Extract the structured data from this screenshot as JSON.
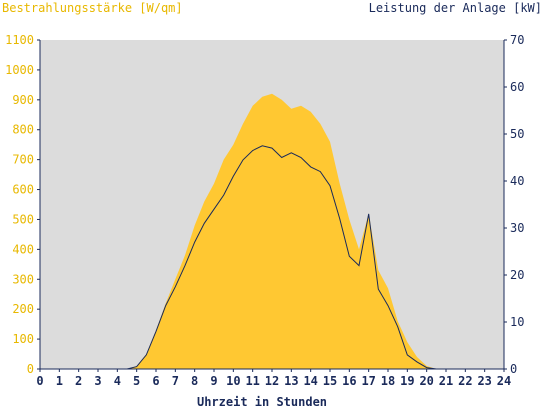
{
  "chart_data": {
    "type": "area",
    "left_title": "Bestrahlungsstärke [W/qm]",
    "right_title": "Leistung der Anlage [kW]",
    "xlabel": "Uhrzeit in Stunden",
    "x_range": [
      0,
      24
    ],
    "x_ticks": [
      "0",
      "1",
      "2",
      "3",
      "4",
      "5",
      "6",
      "7",
      "8",
      "9",
      "10",
      "11",
      "12",
      "13",
      "14",
      "15",
      "16",
      "17",
      "18",
      "19",
      "20",
      "21",
      "22",
      "23",
      "24"
    ],
    "y_left_range": [
      0,
      1100
    ],
    "y_left_ticks": [
      "0",
      "100",
      "200",
      "300",
      "400",
      "500",
      "600",
      "700",
      "800",
      "900",
      "1000",
      "1100"
    ],
    "y_right_range": [
      0,
      70
    ],
    "y_right_ticks": [
      "0",
      "10",
      "20",
      "30",
      "40",
      "50",
      "60",
      "70"
    ],
    "grid": false,
    "colors": {
      "plot_bg": "#dcdcdc",
      "irradiance_fill": "#ffc832",
      "power_line": "#1a2a5a",
      "left_axis_text": "#e8b800",
      "right_axis_text": "#1a2a5a",
      "axis_line": "#1a2a5a"
    },
    "series": [
      {
        "axis": "left",
        "style": "area",
        "x": [
          0,
          4.5,
          5.0,
          5.5,
          6.0,
          6.5,
          7.0,
          7.5,
          8.0,
          8.5,
          9.0,
          9.5,
          10.0,
          10.5,
          11.0,
          11.5,
          12.0,
          12.5,
          13.0,
          13.5,
          14.0,
          14.5,
          15.0,
          15.5,
          16.0,
          16.5,
          17.0,
          17.5,
          18.0,
          18.5,
          19.0,
          19.5,
          20.0,
          20.5,
          21.0,
          24.0
        ],
        "values": [
          0,
          0,
          10,
          50,
          130,
          220,
          300,
          380,
          480,
          560,
          620,
          700,
          750,
          820,
          880,
          910,
          920,
          900,
          870,
          880,
          860,
          820,
          760,
          620,
          500,
          400,
          520,
          330,
          270,
          160,
          90,
          40,
          10,
          0,
          0,
          0
        ]
      },
      {
        "axis": "right",
        "style": "line",
        "x": [
          0,
          4.5,
          5.0,
          5.5,
          6.0,
          6.5,
          7.0,
          7.5,
          8.0,
          8.5,
          9.0,
          9.5,
          10.0,
          10.5,
          11.0,
          11.5,
          12.0,
          12.5,
          13.0,
          13.5,
          14.0,
          14.5,
          15.0,
          15.5,
          16.0,
          16.5,
          17.0,
          17.5,
          18.0,
          18.5,
          19.0,
          19.5,
          20.0,
          20.5,
          21.0,
          24.0
        ],
        "values": [
          0,
          0,
          0.5,
          3,
          8,
          13.5,
          17.5,
          22,
          27,
          31,
          34,
          37,
          41,
          44.5,
          46.5,
          47.5,
          47,
          45,
          46,
          45,
          43,
          42,
          39,
          32,
          24,
          22,
          33,
          17,
          13.5,
          9,
          3,
          1.5,
          0.3,
          0,
          0,
          0
        ]
      }
    ]
  }
}
